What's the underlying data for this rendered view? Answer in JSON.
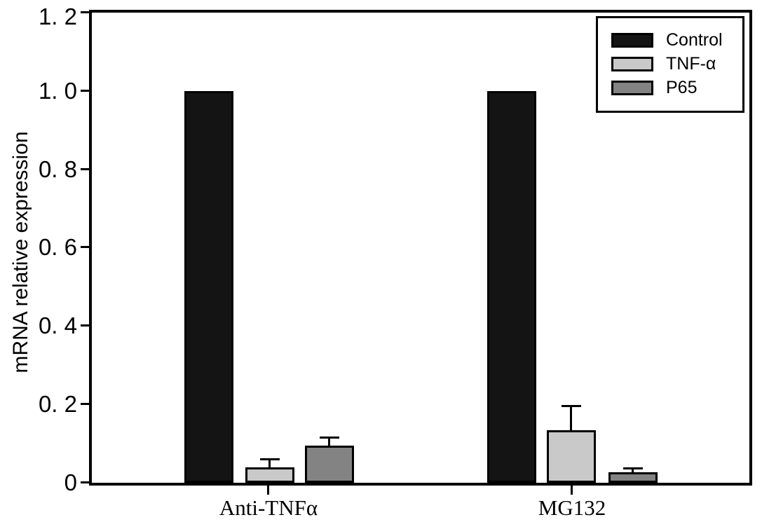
{
  "chart_data": {
    "type": "bar",
    "title": "",
    "xlabel": "",
    "ylabel": "mRNA relative expression",
    "ylim": [
      0,
      1.2
    ],
    "grid": false,
    "legend_position": "top-right",
    "error_bars": "upper whisker with cap",
    "axis_color": "#000000",
    "yticks": [
      {
        "value": 0,
        "label": "0"
      },
      {
        "value": 0.2,
        "label": "0. 2"
      },
      {
        "value": 0.4,
        "label": "0. 4"
      },
      {
        "value": 0.6,
        "label": "0. 6"
      },
      {
        "value": 0.8,
        "label": "0. 8"
      },
      {
        "value": 1.0,
        "label": "1. 0"
      },
      {
        "value": 1.2,
        "label": "1. 2"
      }
    ],
    "categories": [
      "Anti-TNFα",
      "MG132"
    ],
    "series": [
      {
        "name": "Control",
        "color": "#141414",
        "values": [
          1.0,
          1.0
        ],
        "errors": [
          0,
          0
        ]
      },
      {
        "name": "TNF-α",
        "color": "#c9c9c9",
        "values": [
          0.04,
          0.135
        ],
        "errors": [
          0.022,
          0.062
        ]
      },
      {
        "name": "P65",
        "color": "#838383",
        "values": [
          0.095,
          0.027
        ],
        "errors": [
          0.021,
          0.01
        ]
      }
    ]
  }
}
